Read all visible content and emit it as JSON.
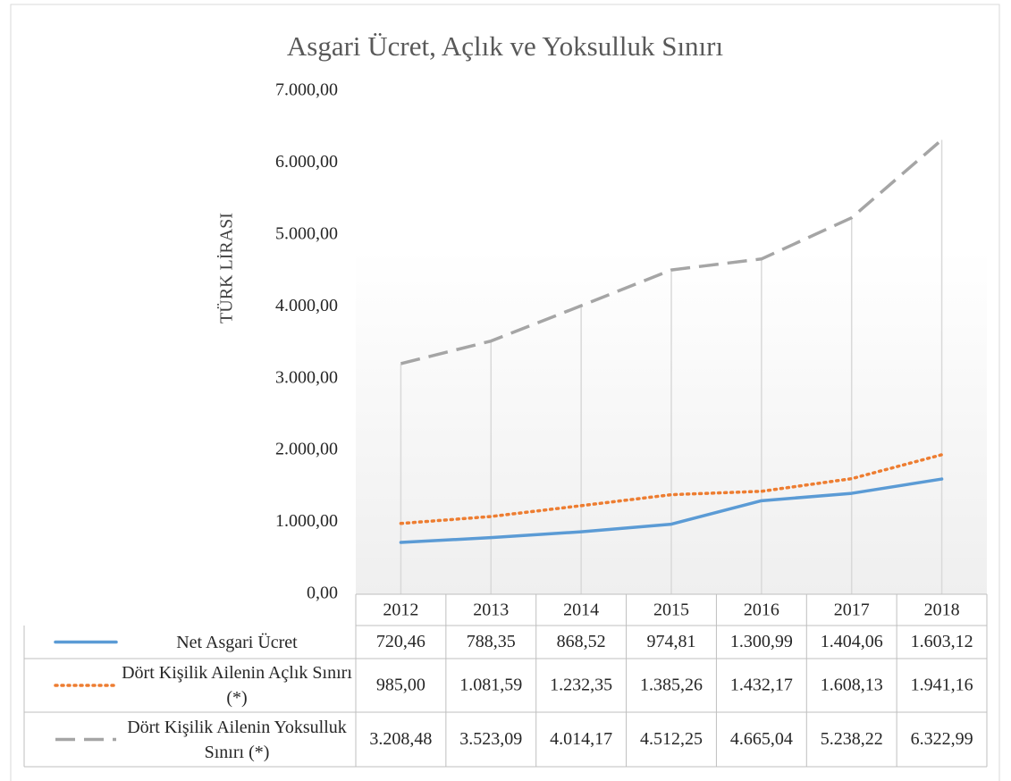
{
  "chart_data": {
    "type": "line",
    "title": "Asgari Ücret, Açlık ve Yoksulluk Sınırı",
    "y_label": "TÜRK LİRASI",
    "categories": [
      "2012",
      "2013",
      "2014",
      "2015",
      "2016",
      "2017",
      "2018"
    ],
    "series": [
      {
        "name": "Net Asgari Ücret",
        "color": "#5b9bd5",
        "style": "solid",
        "values": [
          720.46,
          788.35,
          868.52,
          974.81,
          1300.99,
          1404.06,
          1603.12
        ],
        "value_labels": [
          "720,46",
          "788,35",
          "868,52",
          "974,81",
          "1.300,99",
          "1.404,06",
          "1.603,12"
        ]
      },
      {
        "name": "Dört Kişilik Ailenin Açlık Sınırı (*)",
        "color": "#ed7d31",
        "style": "dotted",
        "values": [
          985.0,
          1081.59,
          1232.35,
          1385.26,
          1432.17,
          1608.13,
          1941.16
        ],
        "value_labels": [
          "985,00",
          "1.081,59",
          "1.232,35",
          "1.385,26",
          "1.432,17",
          "1.608,13",
          "1.941,16"
        ]
      },
      {
        "name": "Dört Kişilik Ailenin Yoksulluk Sınırı (*)",
        "color": "#a5a5a5",
        "style": "dashed",
        "values": [
          3208.48,
          3523.09,
          4014.17,
          4512.25,
          4665.04,
          5238.22,
          6322.99
        ],
        "value_labels": [
          "3.208,48",
          "3.523,09",
          "4.014,17",
          "4.512,25",
          "4.665,04",
          "5.238,22",
          "6.322,99"
        ]
      }
    ],
    "ylim": [
      0,
      7000
    ],
    "yticks": [
      {
        "value": 0,
        "label": "0,00"
      },
      {
        "value": 1000,
        "label": "1.000,00"
      },
      {
        "value": 2000,
        "label": "2.000,00"
      },
      {
        "value": 3000,
        "label": "3.000,00"
      },
      {
        "value": 4000,
        "label": "4.000,00"
      },
      {
        "value": 5000,
        "label": "5.000,00"
      },
      {
        "value": 6000,
        "label": "6.000,00"
      },
      {
        "value": 7000,
        "label": "7.000,00"
      }
    ],
    "drop_lines": true
  }
}
